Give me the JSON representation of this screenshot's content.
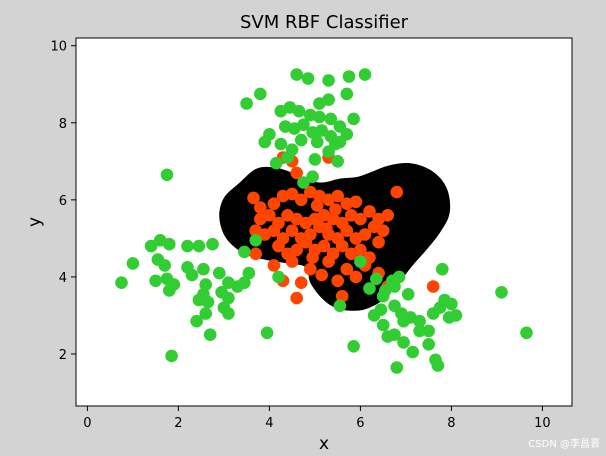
{
  "chart_data": {
    "type": "scatter",
    "title": "SVM RBF Classifier",
    "xlabel": "x",
    "ylabel": "y",
    "xlim": [
      -0.25,
      10.65
    ],
    "ylim": [
      0.65,
      10.2
    ],
    "xticks": [
      0,
      2,
      4,
      6,
      8,
      10
    ],
    "yticks": [
      2,
      4,
      6,
      8,
      10
    ],
    "grid": false,
    "legend": "none",
    "decision_region": {
      "color": "#000000",
      "outline": [
        [
          4.8,
          4.25
        ],
        [
          4.9,
          3.85
        ],
        [
          5.15,
          3.45
        ],
        [
          5.45,
          3.2
        ],
        [
          5.85,
          3.12
        ],
        [
          6.2,
          3.2
        ],
        [
          6.55,
          3.45
        ],
        [
          6.85,
          3.85
        ],
        [
          7.15,
          4.3
        ],
        [
          7.45,
          4.7
        ],
        [
          7.75,
          5.15
        ],
        [
          7.95,
          5.6
        ],
        [
          7.95,
          6.1
        ],
        [
          7.8,
          6.5
        ],
        [
          7.5,
          6.8
        ],
        [
          7.1,
          6.95
        ],
        [
          6.65,
          6.9
        ],
        [
          6.3,
          6.75
        ],
        [
          5.95,
          6.6
        ],
        [
          5.55,
          6.55
        ],
        [
          5.15,
          6.45
        ],
        [
          4.75,
          6.55
        ],
        [
          4.4,
          6.75
        ],
        [
          4.05,
          6.85
        ],
        [
          3.7,
          6.8
        ],
        [
          3.35,
          6.45
        ],
        [
          3.0,
          6.05
        ],
        [
          2.9,
          5.55
        ],
        [
          3.05,
          5.0
        ],
        [
          3.45,
          4.6
        ],
        [
          3.9,
          4.45
        ],
        [
          4.4,
          4.35
        ]
      ]
    },
    "series": [
      {
        "color": "#ff4500",
        "points": [
          [
            4.3,
            7.1
          ],
          [
            4.5,
            7.0
          ],
          [
            5.3,
            7.1
          ],
          [
            4.6,
            6.7
          ],
          [
            3.65,
            6.05
          ],
          [
            3.8,
            5.8
          ],
          [
            4.1,
            5.9
          ],
          [
            4.3,
            6.1
          ],
          [
            4.5,
            6.15
          ],
          [
            4.7,
            6.0
          ],
          [
            4.9,
            6.2
          ],
          [
            5.1,
            6.1
          ],
          [
            5.3,
            6.0
          ],
          [
            5.5,
            6.1
          ],
          [
            5.7,
            5.9
          ],
          [
            5.9,
            5.95
          ],
          [
            3.8,
            5.5
          ],
          [
            4.0,
            5.6
          ],
          [
            4.2,
            5.4
          ],
          [
            4.4,
            5.6
          ],
          [
            4.6,
            5.5
          ],
          [
            4.8,
            5.4
          ],
          [
            5.0,
            5.5
          ],
          [
            5.2,
            5.6
          ],
          [
            5.4,
            5.5
          ],
          [
            5.6,
            5.4
          ],
          [
            5.8,
            5.6
          ],
          [
            6.0,
            5.5
          ],
          [
            6.2,
            5.7
          ],
          [
            6.4,
            5.5
          ],
          [
            6.6,
            5.6
          ],
          [
            6.8,
            6.2
          ],
          [
            3.7,
            5.2
          ],
          [
            3.9,
            5.1
          ],
          [
            4.1,
            5.2
          ],
          [
            4.3,
            5.0
          ],
          [
            4.5,
            5.2
          ],
          [
            4.7,
            5.0
          ],
          [
            4.9,
            5.1
          ],
          [
            5.1,
            5.3
          ],
          [
            5.3,
            5.1
          ],
          [
            5.5,
            5.0
          ],
          [
            5.7,
            5.2
          ],
          [
            5.9,
            5.0
          ],
          [
            6.1,
            5.1
          ],
          [
            6.3,
            5.3
          ],
          [
            6.5,
            5.2
          ],
          [
            4.2,
            4.8
          ],
          [
            4.4,
            4.6
          ],
          [
            4.6,
            4.7
          ],
          [
            4.8,
            4.9
          ],
          [
            5.0,
            4.7
          ],
          [
            5.2,
            4.8
          ],
          [
            5.4,
            4.6
          ],
          [
            5.6,
            4.8
          ],
          [
            5.8,
            4.6
          ],
          [
            6.0,
            4.7
          ],
          [
            6.2,
            4.5
          ],
          [
            6.4,
            4.9
          ],
          [
            3.7,
            4.6
          ],
          [
            4.1,
            4.3
          ],
          [
            4.5,
            4.4
          ],
          [
            4.9,
            4.2
          ],
          [
            5.3,
            4.4
          ],
          [
            5.7,
            4.2
          ],
          [
            6.1,
            4.3
          ],
          [
            6.4,
            4.1
          ],
          [
            6.6,
            3.75
          ],
          [
            4.3,
            3.9
          ],
          [
            4.7,
            3.85
          ],
          [
            5.5,
            3.9
          ],
          [
            5.9,
            4.0
          ],
          [
            4.6,
            3.45
          ],
          [
            5.6,
            3.5
          ],
          [
            7.6,
            3.75
          ],
          [
            5.05,
            5.85
          ],
          [
            5.25,
            5.25
          ],
          [
            5.45,
            5.75
          ],
          [
            4.95,
            4.5
          ],
          [
            5.15,
            4.05
          ]
        ]
      },
      {
        "color": "#32cd32",
        "points": [
          [
            4.6,
            9.25
          ],
          [
            4.85,
            9.15
          ],
          [
            5.3,
            9.1
          ],
          [
            5.75,
            9.2
          ],
          [
            6.1,
            9.25
          ],
          [
            3.8,
            8.75
          ],
          [
            3.5,
            8.5
          ],
          [
            5.1,
            8.5
          ],
          [
            5.3,
            8.6
          ],
          [
            5.7,
            8.75
          ],
          [
            4.25,
            8.3
          ],
          [
            4.45,
            8.4
          ],
          [
            4.65,
            8.3
          ],
          [
            4.9,
            8.2
          ],
          [
            5.1,
            8.15
          ],
          [
            5.35,
            8.1
          ],
          [
            5.55,
            7.9
          ],
          [
            5.85,
            8.1
          ],
          [
            4.35,
            7.9
          ],
          [
            4.55,
            7.85
          ],
          [
            4.75,
            7.95
          ],
          [
            4.95,
            7.75
          ],
          [
            5.15,
            7.8
          ],
          [
            5.35,
            7.65
          ],
          [
            5.55,
            7.5
          ],
          [
            5.7,
            7.7
          ],
          [
            4.0,
            7.7
          ],
          [
            3.9,
            7.5
          ],
          [
            4.25,
            7.45
          ],
          [
            4.5,
            7.3
          ],
          [
            4.7,
            7.55
          ],
          [
            5.05,
            7.5
          ],
          [
            5.3,
            7.25
          ],
          [
            5.45,
            7.45
          ],
          [
            4.4,
            7.1
          ],
          [
            4.15,
            6.95
          ],
          [
            5.0,
            7.05
          ],
          [
            5.5,
            7.0
          ],
          [
            4.95,
            6.6
          ],
          [
            4.75,
            6.45
          ],
          [
            1.75,
            6.65
          ],
          [
            1.6,
            4.95
          ],
          [
            1.8,
            4.85
          ],
          [
            1.4,
            4.8
          ],
          [
            2.2,
            4.8
          ],
          [
            2.45,
            4.8
          ],
          [
            2.75,
            4.85
          ],
          [
            1.55,
            4.45
          ],
          [
            1.7,
            4.3
          ],
          [
            1.0,
            4.35
          ],
          [
            2.2,
            4.25
          ],
          [
            2.55,
            4.2
          ],
          [
            2.3,
            4.05
          ],
          [
            2.9,
            4.1
          ],
          [
            1.75,
            3.95
          ],
          [
            1.5,
            3.9
          ],
          [
            0.75,
            3.85
          ],
          [
            1.9,
            3.8
          ],
          [
            1.8,
            3.65
          ],
          [
            2.6,
            3.8
          ],
          [
            3.1,
            3.85
          ],
          [
            3.3,
            3.75
          ],
          [
            3.45,
            3.85
          ],
          [
            3.55,
            4.1
          ],
          [
            2.55,
            3.55
          ],
          [
            2.45,
            3.4
          ],
          [
            2.65,
            3.35
          ],
          [
            2.95,
            3.6
          ],
          [
            3.1,
            3.45
          ],
          [
            3.0,
            3.2
          ],
          [
            2.6,
            3.05
          ],
          [
            3.1,
            3.05
          ],
          [
            2.4,
            2.85
          ],
          [
            2.7,
            2.5
          ],
          [
            3.95,
            2.55
          ],
          [
            1.85,
            1.95
          ],
          [
            3.45,
            4.65
          ],
          [
            3.7,
            4.95
          ],
          [
            4.2,
            4.0
          ],
          [
            5.55,
            3.25
          ],
          [
            6.0,
            4.4
          ],
          [
            6.2,
            3.7
          ],
          [
            6.35,
            3.95
          ],
          [
            6.55,
            3.65
          ],
          [
            6.7,
            3.9
          ],
          [
            6.85,
            4.0
          ],
          [
            6.75,
            3.75
          ],
          [
            6.5,
            3.5
          ],
          [
            7.05,
            3.55
          ],
          [
            6.45,
            3.15
          ],
          [
            6.3,
            3.0
          ],
          [
            6.75,
            3.25
          ],
          [
            6.9,
            3.05
          ],
          [
            6.5,
            2.75
          ],
          [
            6.75,
            2.5
          ],
          [
            6.95,
            2.85
          ],
          [
            7.1,
            2.95
          ],
          [
            7.3,
            2.85
          ],
          [
            7.5,
            2.6
          ],
          [
            7.6,
            3.05
          ],
          [
            7.75,
            3.2
          ],
          [
            7.85,
            3.4
          ],
          [
            8.0,
            3.3
          ],
          [
            8.1,
            3.0
          ],
          [
            7.95,
            2.95
          ],
          [
            7.3,
            2.6
          ],
          [
            6.6,
            2.45
          ],
          [
            6.95,
            2.3
          ],
          [
            7.15,
            2.05
          ],
          [
            7.5,
            2.25
          ],
          [
            7.65,
            1.85
          ],
          [
            7.7,
            1.7
          ],
          [
            6.8,
            1.65
          ],
          [
            5.85,
            2.2
          ],
          [
            7.8,
            4.2
          ],
          [
            9.1,
            3.6
          ],
          [
            9.65,
            2.55
          ]
        ]
      }
    ]
  },
  "watermark": "CSDN @李昌晋"
}
